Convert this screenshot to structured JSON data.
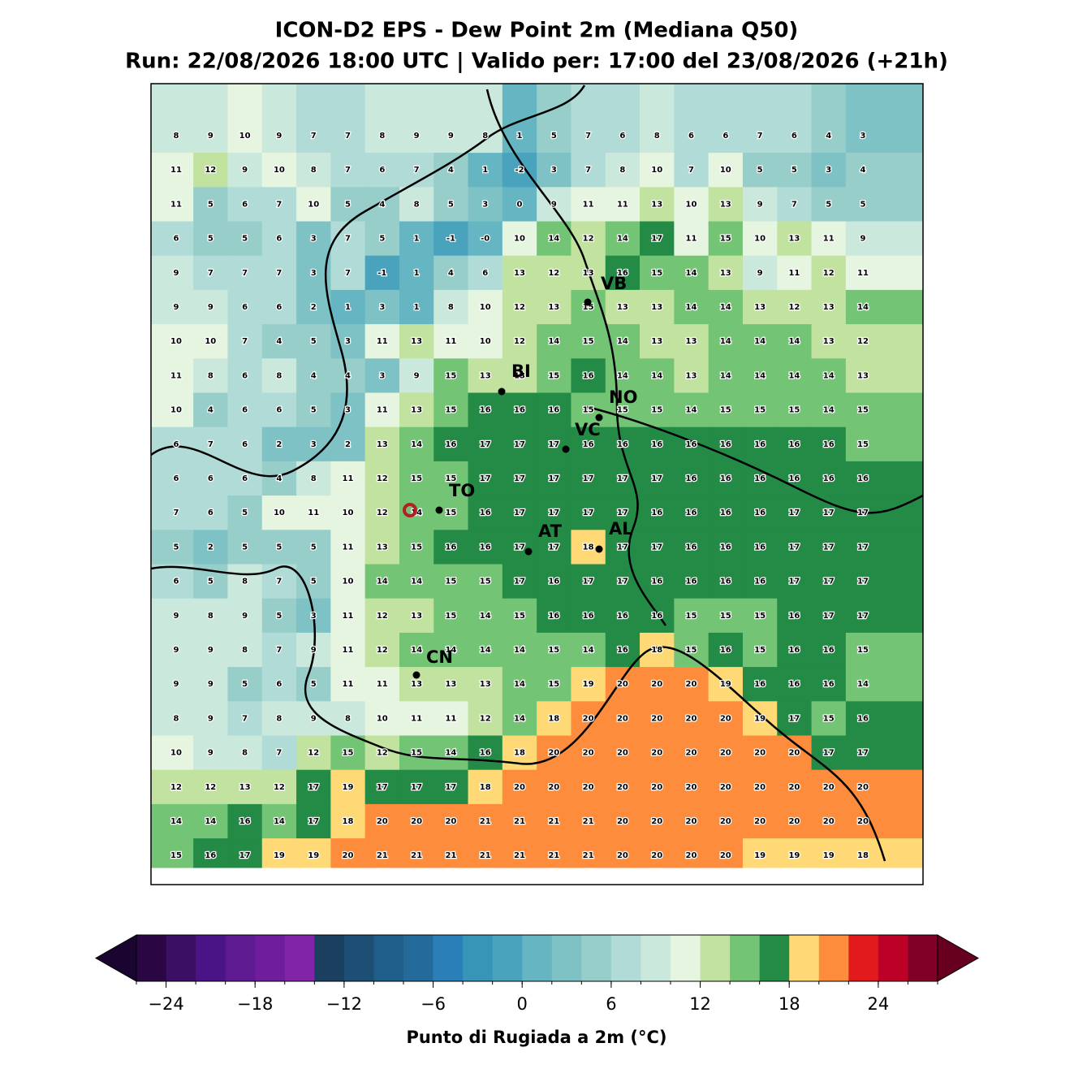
{
  "header": {
    "title": "ICON-D2 EPS - Dew Point 2m (Mediana Q50)",
    "subtitle": "Run: 22/08/2026 18:00 UTC | Valido per: 17:00 del 23/08/2026 (+21h)"
  },
  "map": {
    "grid": [
      [
        "8",
        "9",
        "10",
        "9",
        "7",
        "7",
        "8",
        "9",
        "9",
        "8",
        "1",
        "5",
        "7",
        "6",
        "8",
        "6",
        "6",
        "7",
        "6",
        "4",
        "3"
      ],
      [
        "11",
        "12",
        "9",
        "10",
        "8",
        "7",
        "6",
        "7",
        "4",
        "1",
        "-2",
        "3",
        "7",
        "8",
        "10",
        "7",
        "10",
        "5",
        "5",
        "3",
        "4"
      ],
      [
        "11",
        "5",
        "6",
        "7",
        "10",
        "5",
        "4",
        "8",
        "5",
        "3",
        "0",
        "9",
        "11",
        "11",
        "13",
        "10",
        "13",
        "9",
        "7",
        "5",
        "5"
      ],
      [
        "6",
        "5",
        "5",
        "6",
        "3",
        "7",
        "5",
        "1",
        "-1",
        "-0",
        "10",
        "14",
        "12",
        "14",
        "17",
        "11",
        "15",
        "10",
        "13",
        "11",
        "9"
      ],
      [
        "9",
        "7",
        "7",
        "7",
        "3",
        "7",
        "-1",
        "1",
        "4",
        "6",
        "13",
        "12",
        "13",
        "16",
        "15",
        "14",
        "13",
        "9",
        "11",
        "12",
        "11"
      ],
      [
        "9",
        "9",
        "6",
        "6",
        "2",
        "1",
        "3",
        "1",
        "8",
        "10",
        "12",
        "13",
        "15",
        "13",
        "13",
        "14",
        "14",
        "13",
        "12",
        "13",
        "14"
      ],
      [
        "10",
        "10",
        "7",
        "4",
        "5",
        "3",
        "11",
        "13",
        "11",
        "10",
        "12",
        "14",
        "15",
        "14",
        "13",
        "13",
        "14",
        "14",
        "14",
        "13",
        "12"
      ],
      [
        "11",
        "8",
        "6",
        "8",
        "4",
        "4",
        "3",
        "9",
        "15",
        "13",
        "13",
        "15",
        "16",
        "14",
        "14",
        "13",
        "14",
        "14",
        "14",
        "14",
        "13"
      ],
      [
        "10",
        "4",
        "6",
        "6",
        "5",
        "3",
        "11",
        "13",
        "15",
        "16",
        "16",
        "16",
        "15",
        "15",
        "15",
        "14",
        "15",
        "15",
        "15",
        "14",
        "15"
      ],
      [
        "6",
        "7",
        "6",
        "2",
        "3",
        "2",
        "13",
        "14",
        "16",
        "17",
        "17",
        "17",
        "16",
        "16",
        "16",
        "16",
        "16",
        "16",
        "16",
        "16",
        "15"
      ],
      [
        "6",
        "6",
        "6",
        "4",
        "8",
        "11",
        "12",
        "15",
        "15",
        "17",
        "17",
        "17",
        "17",
        "17",
        "17",
        "16",
        "16",
        "16",
        "16",
        "16",
        "16"
      ],
      [
        "7",
        "6",
        "5",
        "10",
        "11",
        "10",
        "12",
        "14",
        "15",
        "16",
        "17",
        "17",
        "17",
        "17",
        "16",
        "16",
        "16",
        "16",
        "17",
        "17",
        "17"
      ],
      [
        "5",
        "2",
        "5",
        "5",
        "5",
        "11",
        "13",
        "15",
        "16",
        "16",
        "17",
        "17",
        "18",
        "17",
        "17",
        "16",
        "16",
        "16",
        "17",
        "17",
        "17"
      ],
      [
        "6",
        "5",
        "8",
        "7",
        "5",
        "10",
        "14",
        "14",
        "15",
        "15",
        "17",
        "16",
        "17",
        "17",
        "16",
        "16",
        "16",
        "16",
        "17",
        "17",
        "17"
      ],
      [
        "9",
        "8",
        "9",
        "5",
        "3",
        "11",
        "12",
        "13",
        "15",
        "14",
        "15",
        "16",
        "16",
        "16",
        "16",
        "15",
        "15",
        "15",
        "16",
        "17",
        "17"
      ],
      [
        "9",
        "9",
        "8",
        "7",
        "9",
        "11",
        "12",
        "14",
        "14",
        "14",
        "14",
        "15",
        "14",
        "16",
        "18",
        "15",
        "16",
        "15",
        "16",
        "16",
        "15"
      ],
      [
        "9",
        "9",
        "5",
        "6",
        "5",
        "11",
        "11",
        "13",
        "13",
        "13",
        "14",
        "15",
        "19",
        "20",
        "20",
        "20",
        "19",
        "16",
        "16",
        "16",
        "14"
      ],
      [
        "8",
        "9",
        "7",
        "8",
        "9",
        "8",
        "10",
        "11",
        "11",
        "12",
        "14",
        "18",
        "20",
        "20",
        "20",
        "20",
        "20",
        "19",
        "17",
        "15",
        "16"
      ],
      [
        "10",
        "9",
        "8",
        "7",
        "12",
        "15",
        "12",
        "15",
        "14",
        "16",
        "18",
        "20",
        "20",
        "20",
        "20",
        "20",
        "20",
        "20",
        "20",
        "17",
        "17"
      ],
      [
        "12",
        "12",
        "13",
        "12",
        "17",
        "19",
        "17",
        "17",
        "17",
        "18",
        "20",
        "20",
        "20",
        "20",
        "20",
        "20",
        "20",
        "20",
        "20",
        "20",
        "20"
      ],
      [
        "14",
        "14",
        "16",
        "14",
        "17",
        "18",
        "20",
        "20",
        "20",
        "21",
        "21",
        "21",
        "21",
        "20",
        "20",
        "20",
        "20",
        "20",
        "20",
        "20",
        "20"
      ],
      [
        "15",
        "16",
        "17",
        "19",
        "19",
        "20",
        "21",
        "21",
        "21",
        "21",
        "21",
        "21",
        "21",
        "20",
        "20",
        "20",
        "20",
        "19",
        "19",
        "19",
        "18"
      ]
    ],
    "cities": [
      "VB",
      "BI",
      "NO",
      "VC",
      "TO",
      "AT",
      "AL",
      "CN"
    ]
  },
  "colorbar": {
    "levels": [
      -26,
      -24,
      -22,
      -20,
      -18,
      -16,
      -14,
      -12,
      -10,
      -8,
      -6,
      -4,
      -2,
      0,
      2,
      4,
      6,
      8,
      10,
      12,
      14,
      16,
      18,
      20,
      22,
      24,
      26,
      28
    ],
    "colors": [
      "#2a0743",
      "#3b0f63",
      "#4a1486",
      "#5d1a91",
      "#6f1d9c",
      "#8224a8",
      "#1b3f5e",
      "#1d4e73",
      "#205e8a",
      "#246b9c",
      "#2b7fb8",
      "#3795b8",
      "#4aa3bd",
      "#65b5c3",
      "#7fc2c6",
      "#98ceca",
      "#b0dbd6",
      "#cbe8dc",
      "#e5f5e0",
      "#c2e3a0",
      "#74c476",
      "#238b45",
      "#fed976",
      "#fd8d3c",
      "#e31a1c",
      "#bd0026",
      "#800026"
    ],
    "extend_colors": [
      "#1a0530",
      "#67001f"
    ],
    "ticks": [
      {
        "value": -24,
        "label": "−24"
      },
      {
        "value": -18,
        "label": "−18"
      },
      {
        "value": -12,
        "label": "−12"
      },
      {
        "value": -6,
        "label": "−6"
      },
      0,
      6,
      12,
      18,
      24
    ],
    "label": "Punto di Rugiada a 2m (°C)"
  }
}
